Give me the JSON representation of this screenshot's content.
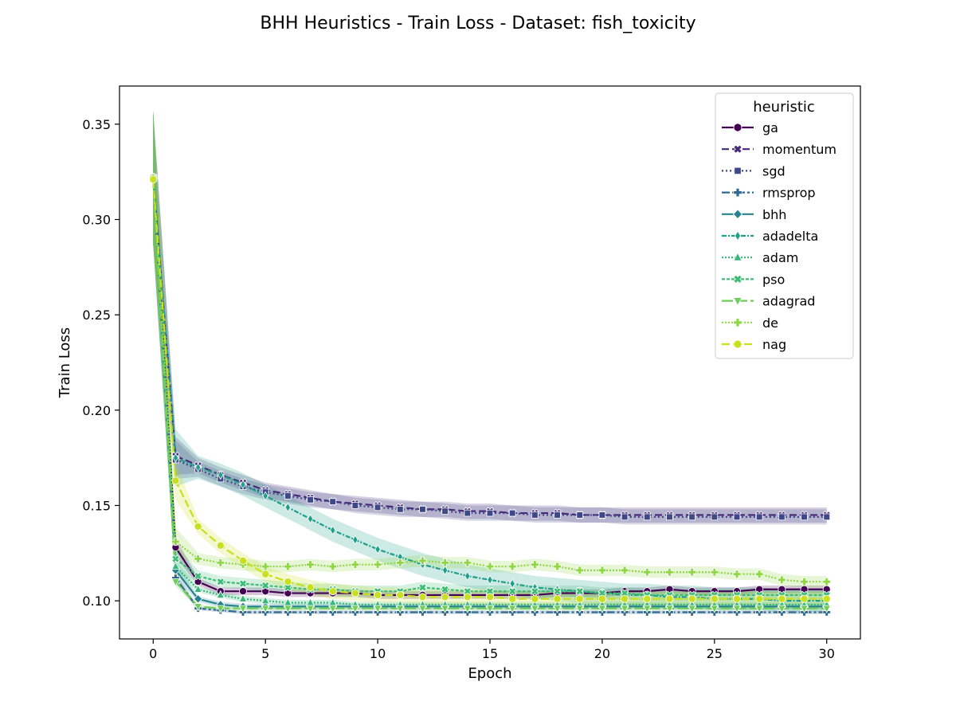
{
  "chart_data": {
    "type": "line",
    "title": "BHH Heuristics - Train Loss - Dataset: fish_toxicity",
    "xlabel": "Epoch",
    "ylabel": "Train Loss",
    "xlim": [
      -1.5,
      31.5
    ],
    "ylim": [
      0.08,
      0.37
    ],
    "xticks": [
      0,
      5,
      10,
      15,
      20,
      25,
      30
    ],
    "yticks": [
      0.1,
      0.15,
      0.2,
      0.25,
      0.3,
      0.35
    ],
    "ytick_labels": [
      "0.10",
      "0.15",
      "0.20",
      "0.25",
      "0.30",
      "0.35"
    ],
    "grid": false,
    "legend": {
      "title": "heuristic",
      "position": "top-right"
    },
    "x": [
      0,
      1,
      2,
      3,
      4,
      5,
      6,
      7,
      8,
      9,
      10,
      11,
      12,
      13,
      14,
      15,
      16,
      17,
      18,
      19,
      20,
      21,
      22,
      23,
      24,
      25,
      26,
      27,
      28,
      29,
      30
    ],
    "series": [
      {
        "name": "ga",
        "color": "#440154",
        "dash": "",
        "marker": "circle",
        "values": [
          0.322,
          0.128,
          0.11,
          0.105,
          0.105,
          0.105,
          0.104,
          0.104,
          0.104,
          0.104,
          0.103,
          0.103,
          0.103,
          0.103,
          0.103,
          0.103,
          0.103,
          0.103,
          0.104,
          0.104,
          0.104,
          0.105,
          0.105,
          0.106,
          0.105,
          0.105,
          0.105,
          0.106,
          0.106,
          0.106,
          0.106
        ],
        "band": 0.002
      },
      {
        "name": "momentum",
        "color": "#482878",
        "dash": "9,4",
        "marker": "x",
        "values": [
          0.322,
          0.176,
          0.171,
          0.166,
          0.162,
          0.158,
          0.156,
          0.154,
          0.152,
          0.151,
          0.15,
          0.149,
          0.148,
          0.148,
          0.147,
          0.147,
          0.146,
          0.146,
          0.146,
          0.145,
          0.145,
          0.145,
          0.145,
          0.145,
          0.145,
          0.145,
          0.145,
          0.145,
          0.145,
          0.145,
          0.145
        ],
        "band": 0.004
      },
      {
        "name": "sgd",
        "color": "#3e4989",
        "dash": "2,3",
        "marker": "square",
        "values": [
          0.322,
          0.174,
          0.169,
          0.164,
          0.16,
          0.157,
          0.155,
          0.153,
          0.152,
          0.15,
          0.149,
          0.148,
          0.148,
          0.147,
          0.146,
          0.146,
          0.146,
          0.145,
          0.145,
          0.145,
          0.145,
          0.144,
          0.144,
          0.144,
          0.144,
          0.144,
          0.144,
          0.144,
          0.144,
          0.144,
          0.144
        ],
        "band": 0.004
      },
      {
        "name": "rmsprop",
        "color": "#31688e",
        "dash": "10,3,3,3",
        "marker": "plus",
        "values": [
          0.322,
          0.112,
          0.096,
          0.095,
          0.094,
          0.094,
          0.094,
          0.094,
          0.094,
          0.094,
          0.094,
          0.094,
          0.094,
          0.094,
          0.094,
          0.094,
          0.094,
          0.094,
          0.094,
          0.094,
          0.094,
          0.094,
          0.094,
          0.094,
          0.094,
          0.094,
          0.094,
          0.094,
          0.094,
          0.094,
          0.094
        ],
        "band": 0.001
      },
      {
        "name": "bhh",
        "color": "#26828e",
        "dash": "",
        "marker": "diamond",
        "values": [
          0.322,
          0.116,
          0.101,
          0.098,
          0.097,
          0.097,
          0.097,
          0.097,
          0.097,
          0.097,
          0.097,
          0.097,
          0.097,
          0.097,
          0.097,
          0.097,
          0.097,
          0.097,
          0.097,
          0.097,
          0.097,
          0.097,
          0.097,
          0.097,
          0.097,
          0.097,
          0.097,
          0.097,
          0.097,
          0.097,
          0.097
        ],
        "band": 0.0015
      },
      {
        "name": "adadelta",
        "color": "#1f9e89",
        "dash": "6,2,2,2",
        "marker": "thin-diamond",
        "values": [
          0.322,
          0.175,
          0.17,
          0.166,
          0.161,
          0.155,
          0.149,
          0.143,
          0.137,
          0.132,
          0.127,
          0.123,
          0.119,
          0.116,
          0.113,
          0.111,
          0.109,
          0.107,
          0.106,
          0.105,
          0.104,
          0.103,
          0.103,
          0.102,
          0.102,
          0.101,
          0.101,
          0.101,
          0.1,
          0.1,
          0.1
        ],
        "band": 0.006
      },
      {
        "name": "adam",
        "color": "#35b779",
        "dash": "2,2",
        "marker": "triangle-up",
        "values": [
          0.322,
          0.118,
          0.106,
          0.103,
          0.101,
          0.1,
          0.099,
          0.099,
          0.099,
          0.098,
          0.098,
          0.098,
          0.098,
          0.098,
          0.098,
          0.098,
          0.098,
          0.098,
          0.098,
          0.098,
          0.098,
          0.098,
          0.098,
          0.098,
          0.098,
          0.098,
          0.098,
          0.098,
          0.098,
          0.098,
          0.098
        ],
        "band": 0.0015
      },
      {
        "name": "pso",
        "color": "#3cbc75",
        "dash": "4,2",
        "marker": "x-filled",
        "values": [
          0.322,
          0.122,
          0.113,
          0.11,
          0.109,
          0.108,
          0.107,
          0.106,
          0.106,
          0.105,
          0.105,
          0.105,
          0.107,
          0.106,
          0.105,
          0.105,
          0.105,
          0.105,
          0.105,
          0.105,
          0.104,
          0.104,
          0.103,
          0.103,
          0.103,
          0.103,
          0.103,
          0.103,
          0.103,
          0.103,
          0.103
        ],
        "band": 0.003
      },
      {
        "name": "adagrad",
        "color": "#6ece58",
        "dash": "14,4",
        "marker": "triangle-down",
        "values": [
          0.322,
          0.11,
          0.097,
          0.096,
          0.096,
          0.096,
          0.096,
          0.096,
          0.096,
          0.096,
          0.096,
          0.096,
          0.096,
          0.096,
          0.096,
          0.096,
          0.096,
          0.096,
          0.096,
          0.096,
          0.096,
          0.096,
          0.096,
          0.096,
          0.096,
          0.096,
          0.096,
          0.096,
          0.096,
          0.096,
          0.096
        ],
        "band": 0.001
      },
      {
        "name": "de",
        "color": "#8fd744",
        "dash": "2,2",
        "marker": "plus-filled",
        "values": [
          0.322,
          0.131,
          0.122,
          0.12,
          0.119,
          0.118,
          0.118,
          0.119,
          0.118,
          0.119,
          0.119,
          0.12,
          0.121,
          0.12,
          0.12,
          0.118,
          0.118,
          0.119,
          0.118,
          0.116,
          0.116,
          0.116,
          0.115,
          0.115,
          0.115,
          0.115,
          0.114,
          0.114,
          0.111,
          0.11,
          0.11
        ],
        "band": 0.003
      },
      {
        "name": "nag",
        "color": "#c8e020",
        "dash": "10,4",
        "marker": "circle",
        "values": [
          0.321,
          0.163,
          0.139,
          0.129,
          0.121,
          0.114,
          0.11,
          0.107,
          0.105,
          0.104,
          0.103,
          0.103,
          0.102,
          0.102,
          0.102,
          0.102,
          0.101,
          0.101,
          0.101,
          0.101,
          0.101,
          0.101,
          0.101,
          0.101,
          0.101,
          0.101,
          0.101,
          0.101,
          0.101,
          0.101,
          0.101
        ],
        "band": 0.004
      }
    ]
  }
}
